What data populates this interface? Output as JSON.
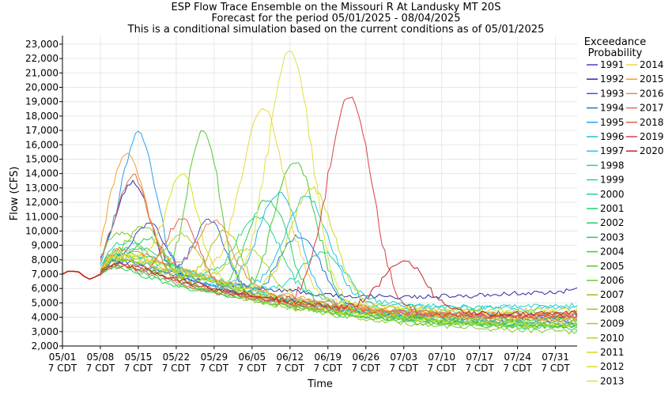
{
  "chart_data": {
    "type": "line",
    "title": [
      "ESP Flow Trace Ensemble on the Missouri R At Landusky MT 20S",
      "Forecast for the period 05/01/2025 - 08/04/2025",
      "This is a conditional simulation based on the current conditions as of 05/01/2025"
    ],
    "xlabel": "Time",
    "ylabel": "Flow (CFS)",
    "ylim": [
      2000,
      23600
    ],
    "y_ticks": [
      "2,000",
      "3,000",
      "4,000",
      "5,000",
      "6,000",
      "7,000",
      "8,000",
      "9,000",
      "10,000",
      "11,000",
      "12,000",
      "13,000",
      "14,000",
      "15,000",
      "16,000",
      "17,000",
      "18,000",
      "19,000",
      "20,000",
      "21,000",
      "22,000",
      "23,000"
    ],
    "x_ticks": [
      {
        "date": "05/01",
        "sub": "7 CDT"
      },
      {
        "date": "05/08",
        "sub": "7 CDT"
      },
      {
        "date": "05/15",
        "sub": "7 CDT"
      },
      {
        "date": "05/22",
        "sub": "7 CDT"
      },
      {
        "date": "05/29",
        "sub": "7 CDT"
      },
      {
        "date": "06/05",
        "sub": "7 CDT"
      },
      {
        "date": "06/12",
        "sub": "7 CDT"
      },
      {
        "date": "06/19",
        "sub": "7 CDT"
      },
      {
        "date": "06/26",
        "sub": "7 CDT"
      },
      {
        "date": "07/03",
        "sub": "7 CDT"
      },
      {
        "date": "07/10",
        "sub": "7 CDT"
      },
      {
        "date": "07/17",
        "sub": "7 CDT"
      },
      {
        "date": "07/24",
        "sub": "7 CDT"
      },
      {
        "date": "07/31",
        "sub": "7 CDT"
      }
    ],
    "legend_title": [
      "Exceedance",
      "Probability"
    ],
    "legend_position": "right",
    "observed": [
      [
        0,
        7000
      ],
      [
        1,
        7200
      ],
      [
        2,
        7200
      ],
      [
        3,
        7150
      ],
      [
        4,
        6850
      ],
      [
        5,
        6650
      ],
      [
        6,
        6800
      ],
      [
        7,
        7000
      ]
    ],
    "series": [
      {
        "name": "1991",
        "color": "#4040c8",
        "peak_day": 16,
        "peak": 10500,
        "end": 4100
      },
      {
        "name": "1992",
        "color": "#2a2aa8",
        "peak_day": 13,
        "peak": 13400,
        "end": 5900
      },
      {
        "name": "1993",
        "color": "#2f5fd8",
        "peak_day": 27,
        "peak": 10800,
        "end": 3800
      },
      {
        "name": "1994",
        "color": "#1e78d8",
        "peak_day": 44,
        "peak": 9800,
        "end": 3600
      },
      {
        "name": "1995",
        "color": "#2aa0e8",
        "peak_day": 14,
        "peak": 16800,
        "end": 4000
      },
      {
        "name": "1996",
        "color": "#22b8e8",
        "peak_day": 40,
        "peak": 12600,
        "end": 3400
      },
      {
        "name": "1997",
        "color": "#20c8d8",
        "peak_day": 45,
        "peak": 12400,
        "end": 4700
      },
      {
        "name": "1998",
        "color": "#20d0c0",
        "peak_day": 48,
        "peak": 8500,
        "end": 4800
      },
      {
        "name": "1999",
        "color": "#20d8a8",
        "peak_day": 12,
        "peak": 9200,
        "end": 3700
      },
      {
        "name": "2000",
        "color": "#20d890",
        "peak_day": 36,
        "peak": 11000,
        "end": 4300
      },
      {
        "name": "2001",
        "color": "#20d070",
        "peak_day": 14,
        "peak": 8800,
        "end": 3200
      },
      {
        "name": "2002",
        "color": "#28d060",
        "peak_day": 38,
        "peak": 12300,
        "end": 3500
      },
      {
        "name": "2003",
        "color": "#30c850",
        "peak_day": 16,
        "peak": 9500,
        "end": 3900
      },
      {
        "name": "2004",
        "color": "#40c840",
        "peak_day": 43,
        "peak": 15300,
        "end": 3300
      },
      {
        "name": "2005",
        "color": "#58c830",
        "peak_day": 26,
        "peak": 17000,
        "end": 3500
      },
      {
        "name": "2006",
        "color": "#70c828",
        "peak_day": 11,
        "peak": 9900,
        "end": 3400
      },
      {
        "name": "2007",
        "color": "#88c820",
        "peak_day": 15,
        "peak": 10400,
        "end": 3000
      },
      {
        "name": "2008",
        "color": "#a0c818",
        "peak_day": 30,
        "peak": 10000,
        "end": 3600
      },
      {
        "name": "2009",
        "color": "#b0cc20",
        "peak_day": 22,
        "peak": 9800,
        "end": 4200
      },
      {
        "name": "2010",
        "color": "#c0d020",
        "peak_day": 34,
        "peak": 8700,
        "end": 3900
      },
      {
        "name": "2011",
        "color": "#d0d820",
        "peak_day": 46,
        "peak": 13000,
        "end": 4500
      },
      {
        "name": "2012",
        "color": "#d8e020",
        "peak_day": 22,
        "peak": 14000,
        "end": 3400
      },
      {
        "name": "2013",
        "color": "#e0e040",
        "peak_day": 42,
        "peak": 22600,
        "end": 3800
      },
      {
        "name": "2014",
        "color": "#e8d840",
        "peak_day": 37,
        "peak": 18600,
        "end": 4300
      },
      {
        "name": "2015",
        "color": "#f0a030",
        "peak_day": 12,
        "peak": 15300,
        "end": 4000
      },
      {
        "name": "2016",
        "color": "#e88848",
        "peak_day": 28,
        "peak": 10800,
        "end": 3800
      },
      {
        "name": "2017",
        "color": "#e87050",
        "peak_day": 13,
        "peak": 13900,
        "end": 4200
      },
      {
        "name": "2018",
        "color": "#e06050",
        "peak_day": 22,
        "peak": 10800,
        "end": 4300
      },
      {
        "name": "2019",
        "color": "#d84040",
        "peak_day": 53,
        "peak": 19900,
        "end": 4100
      },
      {
        "name": "2020",
        "color": "#c02828",
        "peak_day": 63,
        "peak": 8500,
        "end": 4300
      }
    ]
  }
}
